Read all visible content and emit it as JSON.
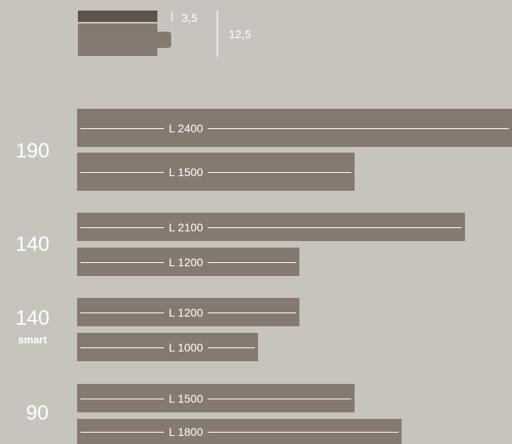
{
  "profile": {
    "top_thickness": "3,5",
    "total_thickness": "12,5",
    "colors": {
      "top_layer": "#5e544d",
      "body": "#857a72",
      "line": "#ffffff"
    }
  },
  "groups": [
    {
      "width": "190",
      "sub": "",
      "planks": [
        {
          "length_label": "L 2400",
          "length_mm": 2400
        },
        {
          "length_label": "L 1500",
          "length_mm": 1500
        }
      ]
    },
    {
      "width": "140",
      "sub": "",
      "planks": [
        {
          "length_label": "L 2100",
          "length_mm": 2100
        },
        {
          "length_label": "L 1200",
          "length_mm": 1200
        }
      ]
    },
    {
      "width": "140",
      "sub": "smart",
      "planks": [
        {
          "length_label": "L 1200",
          "length_mm": 1200
        },
        {
          "length_label": "L 1000",
          "length_mm": 1000
        }
      ]
    },
    {
      "width": "90",
      "sub": "",
      "planks": [
        {
          "length_label": "L 1500",
          "length_mm": 1500
        },
        {
          "length_label": "L 1800",
          "length_mm": 1800
        }
      ]
    }
  ]
}
